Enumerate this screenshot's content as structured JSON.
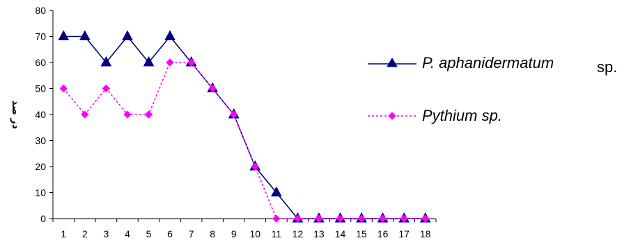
{
  "chart_data": {
    "type": "line",
    "ylabel": "در صد",
    "xlabel": "",
    "ylim": [
      0,
      80
    ],
    "yticks": [
      "0",
      "10",
      "20",
      "30",
      "40",
      "50",
      "60",
      "70",
      "80"
    ],
    "categories": [
      "1",
      "2",
      "3",
      "4",
      "5",
      "6",
      "7",
      "8",
      "9",
      "10",
      "11",
      "12",
      "13",
      "14",
      "15",
      "16",
      "17",
      "18"
    ],
    "series": [
      {
        "name": "P. aphanidermatum",
        "name_suffix": "sp.",
        "color": "#000080",
        "marker": "triangle",
        "line": "solid",
        "values": [
          70,
          70,
          60,
          70,
          60,
          70,
          60,
          50,
          40,
          20,
          10,
          0,
          0,
          0,
          0,
          0,
          0,
          0
        ]
      },
      {
        "name": "Pythium sp.",
        "color": "#ff00ff",
        "marker": "diamond",
        "line": "dotted",
        "values": [
          50,
          40,
          50,
          40,
          40,
          60,
          60,
          50,
          40,
          20,
          0,
          0,
          0,
          0,
          0,
          0,
          0,
          0
        ]
      }
    ],
    "legend": "right",
    "grid": false
  }
}
